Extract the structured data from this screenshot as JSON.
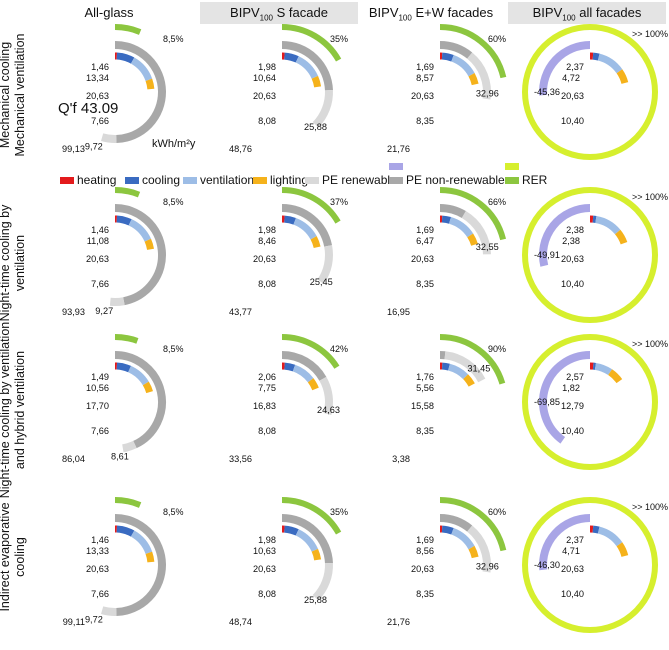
{
  "column_headers": [
    {
      "main": "All-glass",
      "sub": "",
      "tail": ""
    },
    {
      "main": "BIPV",
      "sub": "100",
      "tail": " S facade"
    },
    {
      "main": "BIPV",
      "sub": "100",
      "tail": " E+W facades"
    },
    {
      "main": "BIPV",
      "sub": "100",
      "tail": " all facades"
    }
  ],
  "row_labels": [
    [
      "Mechanical cooling",
      "Mechanical ventilation"
    ],
    [
      "Night-time cooling by",
      "ventilation"
    ],
    [
      "Night-time cooling by ventilation",
      "and hybrid ventilation"
    ],
    [
      "Indirect evaporative",
      "cooling"
    ]
  ],
  "legend": [
    {
      "label": "heating",
      "color": "#e31a1c"
    },
    {
      "label": "cooling",
      "color": "#3a6bc1"
    },
    {
      "label": "ventilation",
      "color": "#9dbde6"
    },
    {
      "label": "lighting",
      "color": "#f5b21b"
    },
    {
      "label": "PE renewable",
      "color": "#d9d9d9"
    },
    {
      "label": "PE non-renewable",
      "color": "#a8a8a8"
    },
    {
      "label": "PE non-renewable (negative)",
      "color": "#a9a5e6"
    },
    {
      "label": "RER",
      "color": "#8cc63f"
    },
    {
      "label": "RER >100%",
      "color": "#d6ef2e"
    }
  ],
  "legend_visible": [
    "heating",
    "cooling",
    "ventilation",
    "lighting",
    "PE renewable",
    "PE non-renewable",
    "RER"
  ],
  "annotation": {
    "qf": "Q'f 43.09",
    "unit": "kWh/m²y"
  },
  "chart_data": {
    "type": "radial-bar",
    "cells": [
      [
        {
          "heating": 1.46,
          "cooling": 13.34,
          "ventilation": 20.63,
          "lighting": 7.66,
          "pe_ren": 9.72,
          "pe_nonren": 99.13,
          "rer": "8,5%"
        },
        {
          "heating": 1.98,
          "cooling": 10.64,
          "ventilation": 20.63,
          "lighting": 8.08,
          "pe_ren": 25.88,
          "pe_nonren": 48.76,
          "rer": "35%"
        },
        {
          "heating": 1.69,
          "cooling": 8.57,
          "ventilation": 20.63,
          "lighting": 8.35,
          "pe_ren": 32.96,
          "pe_nonren": 21.76,
          "rer": "60%"
        },
        {
          "heating": 2.37,
          "cooling": 4.72,
          "ventilation": 20.63,
          "lighting": 10.4,
          "pe_ren": null,
          "pe_nonren": -45.36,
          "rer": ">> 100%"
        }
      ],
      [
        {
          "heating": 1.46,
          "cooling": 11.08,
          "ventilation": 20.63,
          "lighting": 7.66,
          "pe_ren": 9.27,
          "pe_nonren": 93.93,
          "rer": "8,5%"
        },
        {
          "heating": 1.98,
          "cooling": 8.46,
          "ventilation": 20.63,
          "lighting": 8.08,
          "pe_ren": 25.45,
          "pe_nonren": 43.77,
          "rer": "37%"
        },
        {
          "heating": 1.69,
          "cooling": 6.47,
          "ventilation": 20.63,
          "lighting": 8.35,
          "pe_ren": 32.55,
          "pe_nonren": 16.95,
          "rer": "66%"
        },
        {
          "heating": 2.38,
          "cooling": 2.38,
          "ventilation": 20.63,
          "lighting": 10.4,
          "pe_ren": null,
          "pe_nonren": -49.91,
          "rer": ">> 100%"
        }
      ],
      [
        {
          "heating": 1.49,
          "cooling": 10.56,
          "ventilation": 17.7,
          "lighting": 7.66,
          "pe_ren": 8.61,
          "pe_nonren": 86.04,
          "rer": "8,5%"
        },
        {
          "heating": 2.06,
          "cooling": 7.75,
          "ventilation": 16.83,
          "lighting": 8.08,
          "pe_ren": 24.63,
          "pe_nonren": 33.56,
          "rer": "42%"
        },
        {
          "heating": 1.76,
          "cooling": 5.56,
          "ventilation": 15.58,
          "lighting": 8.35,
          "pe_ren": 31.45,
          "pe_nonren": 3.38,
          "rer": "90%"
        },
        {
          "heating": 2.57,
          "cooling": 1.82,
          "ventilation": 12.79,
          "lighting": 10.4,
          "pe_ren": null,
          "pe_nonren": -69.85,
          "rer": ">> 100%"
        }
      ],
      [
        {
          "heating": 1.46,
          "cooling": 13.33,
          "ventilation": 20.63,
          "lighting": 7.66,
          "pe_ren": 9.72,
          "pe_nonren": 99.11,
          "rer": "8,5%"
        },
        {
          "heating": 1.98,
          "cooling": 10.63,
          "ventilation": 20.63,
          "lighting": 8.08,
          "pe_ren": 25.88,
          "pe_nonren": 48.74,
          "rer": "35%"
        },
        {
          "heating": 1.69,
          "cooling": 8.56,
          "ventilation": 20.63,
          "lighting": 8.35,
          "pe_ren": 32.96,
          "pe_nonren": 21.76,
          "rer": "60%"
        },
        {
          "heating": 2.37,
          "cooling": 4.71,
          "ventilation": 20.63,
          "lighting": 10.4,
          "pe_ren": null,
          "pe_nonren": -46.3,
          "rer": ">> 100%"
        }
      ]
    ]
  }
}
